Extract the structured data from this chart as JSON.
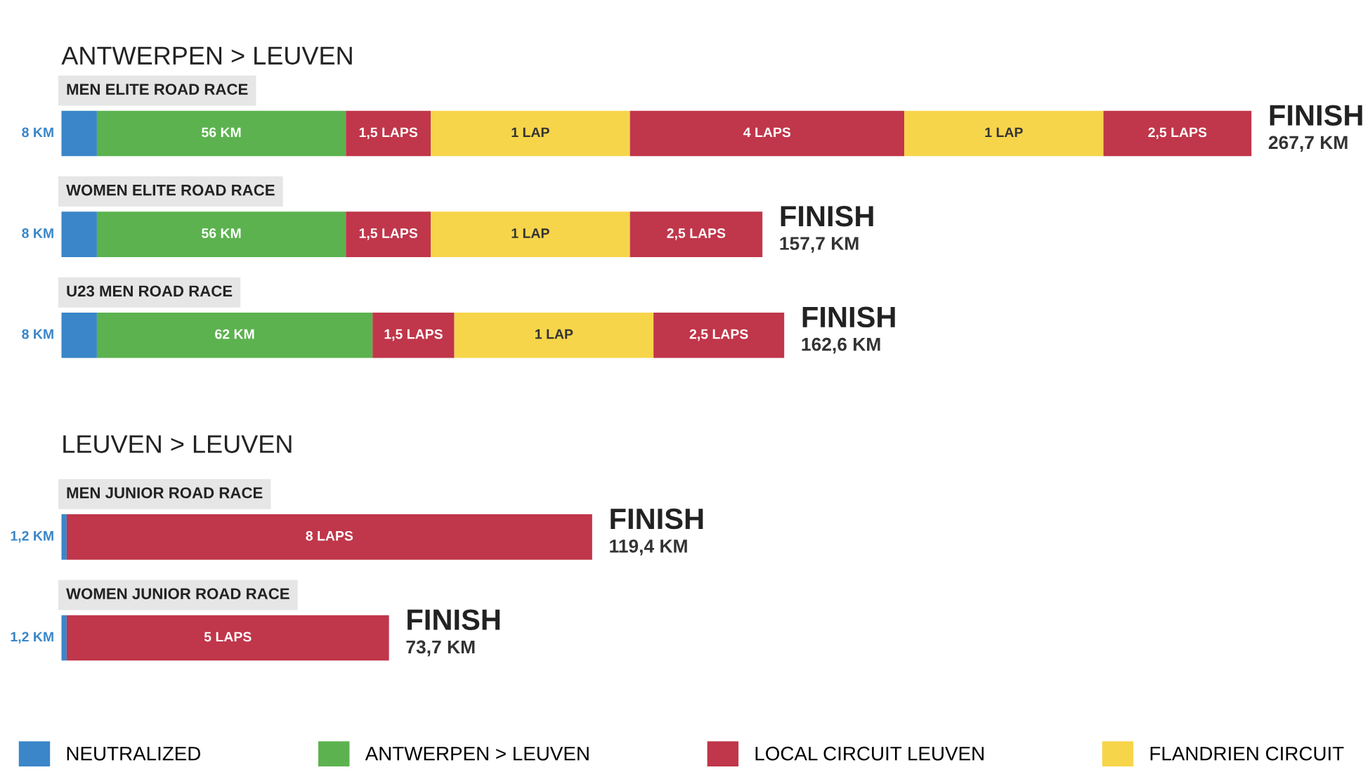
{
  "chart_data": {
    "type": "bar",
    "orientation": "horizontal",
    "stacked": true,
    "legend": "bottom",
    "categories": [
      "MEN ELITE ROAD RACE",
      "WOMEN ELITE ROAD RACE",
      "U23 MEN ROAD RACE",
      null,
      "MEN JUNIOR ROAD RACE",
      "WOMEN JUNIOR ROAD RACE"
    ],
    "series": [
      {
        "name": "NEUTRALIZED",
        "color": "#3a86c8",
        "values": [
          8,
          8,
          8,
          null,
          1.2,
          1.2
        ],
        "value_labels": [
          "8 KM",
          "8 KM",
          "8 KM",
          null,
          "1,2 KM",
          "1,2 KM"
        ]
      },
      {
        "name": "ANTWERPEN > LEUVEN",
        "color": "#5cb24f",
        "values": [
          56,
          56,
          62,
          null,
          null,
          null
        ],
        "value_labels": [
          "56 KM",
          "56 KM",
          "62 KM",
          null,
          null,
          null
        ]
      },
      {
        "name": "LOCAL CIRCUIT LEUVEN",
        "color": "#c0364a",
        "values": [
          19.1,
          19.1,
          18.4,
          null,
          118.2,
          72.5
        ]
      },
      {
        "name": "FLANDRIEN CIRCUIT",
        "color": "#f7d54a",
        "values": [
          44.8,
          44.8,
          44.8,
          null,
          null,
          null
        ]
      },
      {
        "color": "#c0364a",
        "values": [
          61.7,
          29.8,
          29.4,
          null,
          null,
          null
        ]
      },
      {
        "color": "#f7d54a",
        "values": [
          44.8,
          null,
          null,
          null,
          null,
          null
        ]
      },
      {
        "color": "#c0364a",
        "values": [
          33.3,
          null,
          null,
          null,
          null,
          null
        ]
      }
    ],
    "totals": [
      "FINISH\n267,7 KM",
      "FINISH\n157,7 KM",
      "FINISH\n162,6 KM",
      null,
      "FINISH\n119,4 KM",
      "FINISH\n73,7 KM"
    ],
    "annotations": [
      "ANTWERPEN > LEUVEN",
      "LEUVEN > LEUVEN",
      "1,5 LAPS",
      "1 LAP",
      "4 LAPS",
      "1 LAP",
      "2,5 LAPS",
      "1,5 LAPS",
      "1 LAP",
      "2,5 LAPS",
      "1,5 LAPS",
      "1 LAP",
      "2,5 LAPS",
      "8 LAPS",
      "5 LAPS"
    ]
  }
}
